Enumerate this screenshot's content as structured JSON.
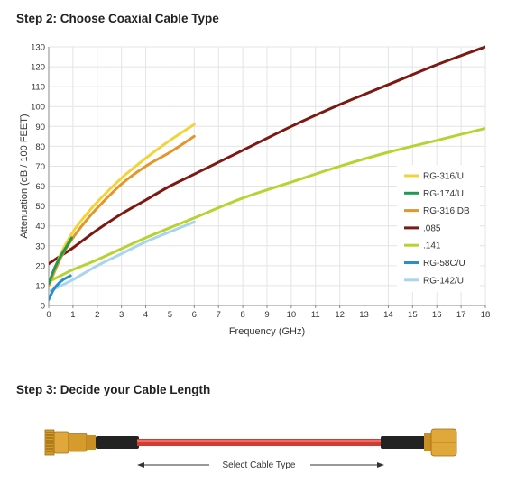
{
  "step2": {
    "title": "Step 2: Choose Coaxial Cable Type"
  },
  "step3": {
    "title": "Step 3: Decide your Cable Length"
  },
  "cable": {
    "label": "Select Cable Type"
  },
  "chart_data": {
    "type": "line",
    "xlabel": "Frequency (GHz)",
    "ylabel": "Attenuation (dB / 100 FEET)",
    "xlim": [
      0,
      18
    ],
    "ylim": [
      0,
      130
    ],
    "xticks": [
      0,
      1,
      2,
      3,
      4,
      5,
      6,
      7,
      8,
      9,
      10,
      11,
      12,
      13,
      14,
      15,
      16,
      17,
      18
    ],
    "yticks": [
      0,
      10,
      20,
      30,
      40,
      50,
      60,
      70,
      80,
      90,
      100,
      110,
      120,
      130
    ],
    "grid": true,
    "legend_position": "right",
    "series": [
      {
        "name": "RG-316/U",
        "color": "#f2d43a",
        "x": [
          0,
          0.5,
          1,
          1.5,
          2,
          3,
          4,
          5,
          6
        ],
        "y": [
          11,
          26,
          37,
          45,
          52,
          64,
          74,
          83,
          91
        ]
      },
      {
        "name": "RG-174/U",
        "color": "#1f9a53",
        "x": [
          0,
          0.25,
          0.5,
          0.75,
          0.95
        ],
        "y": [
          11,
          19,
          25,
          30,
          34
        ]
      },
      {
        "name": "RG-316 DB",
        "color": "#e3962b",
        "x": [
          0,
          0.5,
          1,
          1.5,
          2,
          3,
          4,
          5,
          6
        ],
        "y": [
          10,
          24,
          34,
          42,
          49,
          61,
          70,
          77,
          85
        ]
      },
      {
        "name": ".085",
        "color": "#7a1a12",
        "x": [
          0,
          0.5,
          1,
          2,
          3,
          4,
          5,
          6,
          8,
          10,
          12,
          14,
          16,
          18
        ],
        "y": [
          21,
          25,
          29,
          38,
          46,
          53,
          60,
          66,
          78,
          90,
          101,
          111,
          121,
          131
        ]
      },
      {
        "name": ".141",
        "color": "#b9d233",
        "x": [
          0,
          0.5,
          1,
          2,
          4,
          6,
          8,
          10,
          12,
          14,
          16,
          18
        ],
        "y": [
          12,
          15,
          18,
          23,
          34,
          44,
          54,
          62,
          70,
          77,
          83,
          89
        ]
      },
      {
        "name": "RG-58C/U",
        "color": "#2b8fc6",
        "x": [
          0,
          0.2,
          0.4,
          0.6,
          0.9
        ],
        "y": [
          3,
          8,
          11,
          13,
          15
        ]
      },
      {
        "name": "RG-142/U",
        "color": "#a9d4ee",
        "x": [
          0,
          1,
          2,
          3,
          4,
          5,
          6
        ],
        "y": [
          7,
          13,
          20,
          26,
          32,
          37,
          42
        ]
      }
    ]
  }
}
